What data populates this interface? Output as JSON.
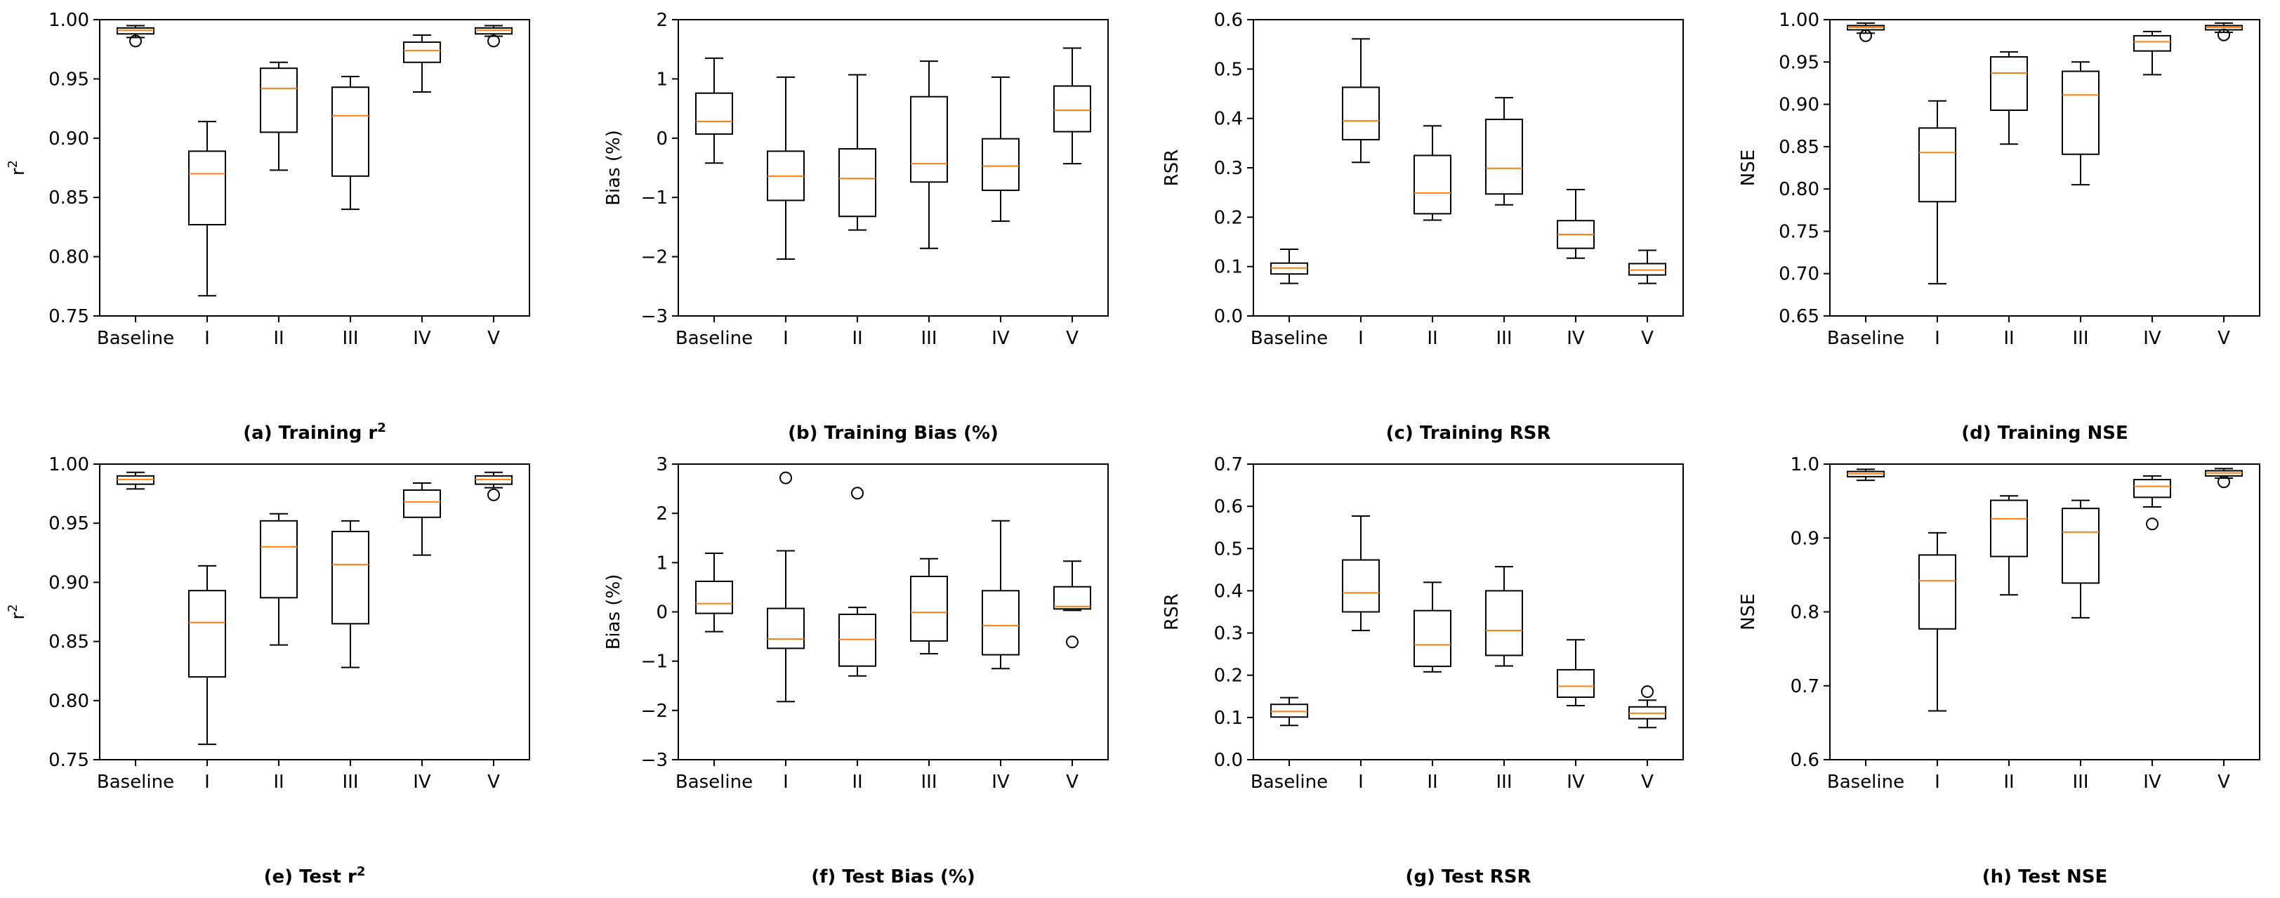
{
  "chart_data": [
    {
      "type": "box",
      "caption": "(a) Training r",
      "caption_sup": "2",
      "ylabel": "r",
      "ylabel_sup": "2",
      "ylim": [
        0.75,
        1.0
      ],
      "yticks": [
        "0.75",
        "0.80",
        "0.85",
        "0.90",
        "0.95",
        "1.00"
      ],
      "categories": [
        "Baseline",
        "I",
        "II",
        "III",
        "IV",
        "V"
      ],
      "boxes": [
        {
          "whislo": 0.985,
          "q1": 0.988,
          "med": 0.991,
          "q3": 0.993,
          "whishi": 0.995,
          "fliers": [
            0.982
          ]
        },
        {
          "whislo": 0.767,
          "q1": 0.827,
          "med": 0.87,
          "q3": 0.889,
          "whishi": 0.914,
          "fliers": []
        },
        {
          "whislo": 0.873,
          "q1": 0.905,
          "med": 0.942,
          "q3": 0.959,
          "whishi": 0.964,
          "fliers": []
        },
        {
          "whislo": 0.84,
          "q1": 0.868,
          "med": 0.919,
          "q3": 0.943,
          "whishi": 0.952,
          "fliers": []
        },
        {
          "whislo": 0.939,
          "q1": 0.964,
          "med": 0.974,
          "q3": 0.981,
          "whishi": 0.987,
          "fliers": []
        },
        {
          "whislo": 0.986,
          "q1": 0.988,
          "med": 0.991,
          "q3": 0.993,
          "whishi": 0.995,
          "fliers": [
            0.982
          ]
        }
      ]
    },
    {
      "type": "box",
      "caption": "(b) Training Bias (%)",
      "caption_sup": "",
      "ylabel": "Bias (%)",
      "ylabel_sup": "",
      "ylim": [
        -3,
        2
      ],
      "yticks": [
        "−3",
        "−2",
        "−1",
        "0",
        "1",
        "2"
      ],
      "categories": [
        "Baseline",
        "I",
        "II",
        "III",
        "IV",
        "V"
      ],
      "boxes": [
        {
          "whislo": -0.42,
          "q1": 0.07,
          "med": 0.28,
          "q3": 0.76,
          "whishi": 1.35,
          "fliers": []
        },
        {
          "whislo": -2.04,
          "q1": -1.05,
          "med": -0.64,
          "q3": -0.22,
          "whishi": 1.03,
          "fliers": []
        },
        {
          "whislo": -1.55,
          "q1": -1.32,
          "med": -0.68,
          "q3": -0.18,
          "whishi": 1.07,
          "fliers": []
        },
        {
          "whislo": -1.86,
          "q1": -0.74,
          "med": -0.43,
          "q3": 0.7,
          "whishi": 1.3,
          "fliers": []
        },
        {
          "whislo": -1.4,
          "q1": -0.88,
          "med": -0.47,
          "q3": -0.01,
          "whishi": 1.03,
          "fliers": []
        },
        {
          "whislo": -0.43,
          "q1": 0.11,
          "med": 0.47,
          "q3": 0.88,
          "whishi": 1.52,
          "fliers": []
        }
      ]
    },
    {
      "type": "box",
      "caption": "(c) Training RSR",
      "caption_sup": "",
      "ylabel": "RSR",
      "ylabel_sup": "",
      "ylim": [
        0.0,
        0.6
      ],
      "yticks": [
        "0.0",
        "0.1",
        "0.2",
        "0.3",
        "0.4",
        "0.5",
        "0.6"
      ],
      "categories": [
        "Baseline",
        "I",
        "II",
        "III",
        "IV",
        "V"
      ],
      "boxes": [
        {
          "whislo": 0.066,
          "q1": 0.085,
          "med": 0.097,
          "q3": 0.107,
          "whishi": 0.135,
          "fliers": []
        },
        {
          "whislo": 0.311,
          "q1": 0.357,
          "med": 0.395,
          "q3": 0.463,
          "whishi": 0.561,
          "fliers": []
        },
        {
          "whislo": 0.194,
          "q1": 0.207,
          "med": 0.249,
          "q3": 0.325,
          "whishi": 0.385,
          "fliers": []
        },
        {
          "whislo": 0.225,
          "q1": 0.247,
          "med": 0.299,
          "q3": 0.398,
          "whishi": 0.442,
          "fliers": []
        },
        {
          "whislo": 0.117,
          "q1": 0.137,
          "med": 0.165,
          "q3": 0.193,
          "whishi": 0.256,
          "fliers": []
        },
        {
          "whislo": 0.066,
          "q1": 0.083,
          "med": 0.093,
          "q3": 0.106,
          "whishi": 0.133,
          "fliers": []
        }
      ]
    },
    {
      "type": "box",
      "caption": "(d) Training NSE",
      "caption_sup": "",
      "ylabel": "NSE",
      "ylabel_sup": "",
      "ylim": [
        0.65,
        1.0
      ],
      "yticks": [
        "0.65",
        "0.70",
        "0.75",
        "0.80",
        "0.85",
        "0.90",
        "0.95",
        "1.00"
      ],
      "categories": [
        "Baseline",
        "I",
        "II",
        "III",
        "IV",
        "V"
      ],
      "boxes": [
        {
          "whislo": 0.984,
          "q1": 0.988,
          "med": 0.991,
          "q3": 0.993,
          "whishi": 0.996,
          "fliers": [
            0.981
          ]
        },
        {
          "whislo": 0.688,
          "q1": 0.785,
          "med": 0.843,
          "q3": 0.872,
          "whishi": 0.904,
          "fliers": []
        },
        {
          "whislo": 0.853,
          "q1": 0.893,
          "med": 0.937,
          "q3": 0.956,
          "whishi": 0.962,
          "fliers": []
        },
        {
          "whislo": 0.805,
          "q1": 0.841,
          "med": 0.911,
          "q3": 0.939,
          "whishi": 0.95,
          "fliers": []
        },
        {
          "whislo": 0.935,
          "q1": 0.963,
          "med": 0.974,
          "q3": 0.981,
          "whishi": 0.986,
          "fliers": []
        },
        {
          "whislo": 0.985,
          "q1": 0.988,
          "med": 0.991,
          "q3": 0.993,
          "whishi": 0.996,
          "fliers": [
            0.982
          ]
        }
      ]
    },
    {
      "type": "box",
      "caption": "(e) Test r",
      "caption_sup": "2",
      "ylabel": "r",
      "ylabel_sup": "2",
      "ylim": [
        0.75,
        1.0
      ],
      "yticks": [
        "0.75",
        "0.80",
        "0.85",
        "0.90",
        "0.95",
        "1.00"
      ],
      "categories": [
        "Baseline",
        "I",
        "II",
        "III",
        "IV",
        "V"
      ],
      "boxes": [
        {
          "whislo": 0.979,
          "q1": 0.983,
          "med": 0.987,
          "q3": 0.99,
          "whishi": 0.993,
          "fliers": []
        },
        {
          "whislo": 0.763,
          "q1": 0.82,
          "med": 0.866,
          "q3": 0.893,
          "whishi": 0.914,
          "fliers": []
        },
        {
          "whislo": 0.847,
          "q1": 0.887,
          "med": 0.93,
          "q3": 0.952,
          "whishi": 0.958,
          "fliers": []
        },
        {
          "whislo": 0.828,
          "q1": 0.865,
          "med": 0.915,
          "q3": 0.943,
          "whishi": 0.952,
          "fliers": []
        },
        {
          "whislo": 0.923,
          "q1": 0.955,
          "med": 0.968,
          "q3": 0.978,
          "whishi": 0.984,
          "fliers": []
        },
        {
          "whislo": 0.98,
          "q1": 0.983,
          "med": 0.987,
          "q3": 0.99,
          "whishi": 0.993,
          "fliers": [
            0.974
          ]
        }
      ]
    },
    {
      "type": "box",
      "caption": "(f) Test Bias (%)",
      "caption_sup": "",
      "ylabel": "Bias (%)",
      "ylabel_sup": "",
      "ylim": [
        -3,
        3
      ],
      "yticks": [
        "−3",
        "−2",
        "−1",
        "0",
        "1",
        "2",
        "3"
      ],
      "categories": [
        "Baseline",
        "I",
        "II",
        "III",
        "IV",
        "V"
      ],
      "boxes": [
        {
          "whislo": -0.4,
          "q1": -0.03,
          "med": 0.17,
          "q3": 0.62,
          "whishi": 1.19,
          "fliers": []
        },
        {
          "whislo": -1.82,
          "q1": -0.74,
          "med": -0.55,
          "q3": 0.07,
          "whishi": 1.24,
          "fliers": [
            2.72
          ]
        },
        {
          "whislo": -1.3,
          "q1": -1.1,
          "med": -0.56,
          "q3": -0.05,
          "whishi": 0.09,
          "fliers": [
            2.41
          ]
        },
        {
          "whislo": -0.85,
          "q1": -0.59,
          "med": -0.01,
          "q3": 0.72,
          "whishi": 1.08,
          "fliers": []
        },
        {
          "whislo": -1.15,
          "q1": -0.87,
          "med": -0.28,
          "q3": 0.43,
          "whishi": 1.85,
          "fliers": []
        },
        {
          "whislo": 0.03,
          "q1": 0.06,
          "med": 0.11,
          "q3": 0.51,
          "whishi": 1.03,
          "fliers": [
            -0.61
          ]
        }
      ]
    },
    {
      "type": "box",
      "caption": "(g) Test RSR",
      "caption_sup": "",
      "ylabel": "RSR",
      "ylabel_sup": "",
      "ylim": [
        0.0,
        0.7
      ],
      "yticks": [
        "0.0",
        "0.1",
        "0.2",
        "0.3",
        "0.4",
        "0.5",
        "0.6",
        "0.7"
      ],
      "categories": [
        "Baseline",
        "I",
        "II",
        "III",
        "IV",
        "V"
      ],
      "boxes": [
        {
          "whislo": 0.081,
          "q1": 0.101,
          "med": 0.114,
          "q3": 0.131,
          "whishi": 0.147,
          "fliers": []
        },
        {
          "whislo": 0.306,
          "q1": 0.35,
          "med": 0.395,
          "q3": 0.473,
          "whishi": 0.577,
          "fliers": []
        },
        {
          "whislo": 0.208,
          "q1": 0.221,
          "med": 0.272,
          "q3": 0.353,
          "whishi": 0.42,
          "fliers": []
        },
        {
          "whislo": 0.222,
          "q1": 0.247,
          "med": 0.306,
          "q3": 0.4,
          "whishi": 0.457,
          "fliers": []
        },
        {
          "whislo": 0.128,
          "q1": 0.148,
          "med": 0.174,
          "q3": 0.213,
          "whishi": 0.284,
          "fliers": []
        },
        {
          "whislo": 0.076,
          "q1": 0.097,
          "med": 0.11,
          "q3": 0.125,
          "whishi": 0.141,
          "fliers": [
            0.161
          ]
        }
      ]
    },
    {
      "type": "box",
      "caption": "(h) Test NSE",
      "caption_sup": "",
      "ylabel": "NSE",
      "ylabel_sup": "",
      "ylim": [
        0.6,
        1.0
      ],
      "yticks": [
        "0.6",
        "0.7",
        "0.8",
        "0.9",
        "1.0"
      ],
      "categories": [
        "Baseline",
        "I",
        "II",
        "III",
        "IV",
        "V"
      ],
      "boxes": [
        {
          "whislo": 0.978,
          "q1": 0.983,
          "med": 0.987,
          "q3": 0.99,
          "whishi": 0.993,
          "fliers": []
        },
        {
          "whislo": 0.666,
          "q1": 0.777,
          "med": 0.842,
          "q3": 0.877,
          "whishi": 0.907,
          "fliers": []
        },
        {
          "whislo": 0.823,
          "q1": 0.875,
          "med": 0.926,
          "q3": 0.951,
          "whishi": 0.957,
          "fliers": []
        },
        {
          "whislo": 0.792,
          "q1": 0.839,
          "med": 0.908,
          "q3": 0.94,
          "whishi": 0.951,
          "fliers": []
        },
        {
          "whislo": 0.942,
          "q1": 0.955,
          "med": 0.97,
          "q3": 0.979,
          "whishi": 0.984,
          "fliers": [
            0.919
          ]
        },
        {
          "whislo": 0.981,
          "q1": 0.984,
          "med": 0.988,
          "q3": 0.991,
          "whishi": 0.994,
          "fliers": [
            0.976
          ]
        }
      ]
    }
  ],
  "style": {
    "box_color": "#000000",
    "median_color": "#ff7f0e",
    "background": "#ffffff"
  }
}
